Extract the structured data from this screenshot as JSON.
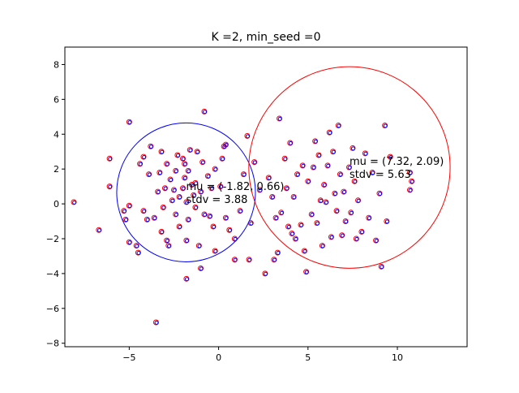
{
  "chart_data": {
    "type": "scatter",
    "title": "K =2, min_seed =0",
    "xlabel": "",
    "ylabel": "",
    "xlim": [
      -8.6,
      13.9
    ],
    "ylim": [
      -8.2,
      9.0
    ],
    "xticks": [
      -5,
      0,
      5,
      10
    ],
    "xtick_labels": [
      "−5",
      "0",
      "5",
      "10"
    ],
    "yticks": [
      -8,
      -6,
      -4,
      -2,
      0,
      2,
      4,
      6,
      8
    ],
    "ytick_labels": [
      "−8",
      "−6",
      "−4",
      "−2",
      "0",
      "2",
      "4",
      "6",
      "8"
    ],
    "grid": false,
    "point_colors": {
      "outer": "#ff0000",
      "inner": "#0000ff"
    },
    "points": [
      [
        -8.1,
        0.1
      ],
      [
        -6.7,
        -1.5
      ],
      [
        -6.1,
        2.6
      ],
      [
        -6.1,
        1.0
      ],
      [
        -5.3,
        -0.4
      ],
      [
        -5.2,
        -0.9
      ],
      [
        -5.0,
        -0.1
      ],
      [
        -5.0,
        -2.2
      ],
      [
        -5.0,
        4.7
      ],
      [
        -4.6,
        -2.4
      ],
      [
        -4.5,
        -2.8
      ],
      [
        -4.4,
        2.3
      ],
      [
        -4.2,
        -0.4
      ],
      [
        -4.0,
        -0.9
      ],
      [
        -4.2,
        2.7
      ],
      [
        -3.9,
        1.7
      ],
      [
        -3.8,
        3.3
      ],
      [
        -3.6,
        -0.8
      ],
      [
        -3.4,
        0.7
      ],
      [
        -3.5,
        -6.8
      ],
      [
        -3.3,
        1.8
      ],
      [
        -3.2,
        -1.6
      ],
      [
        -3.1,
        -0.2
      ],
      [
        -3.2,
        3.0
      ],
      [
        -3.0,
        0.9
      ],
      [
        -2.9,
        2.3
      ],
      [
        -2.9,
        -2.1
      ],
      [
        -2.8,
        -2.4
      ],
      [
        -2.7,
        1.4
      ],
      [
        -2.6,
        0.2
      ],
      [
        -2.5,
        0.8
      ],
      [
        -2.4,
        -0.6
      ],
      [
        -2.4,
        1.9
      ],
      [
        -2.3,
        2.8
      ],
      [
        -2.2,
        0.4
      ],
      [
        -2.2,
        -1.3
      ],
      [
        -2.0,
        2.6
      ],
      [
        -2.0,
        0.9
      ],
      [
        -1.9,
        2.3
      ],
      [
        -1.9,
        1.5
      ],
      [
        -1.8,
        0.1
      ],
      [
        -1.8,
        -2.1
      ],
      [
        -1.7,
        1.9
      ],
      [
        -1.7,
        -0.9
      ],
      [
        -1.6,
        3.1
      ],
      [
        -1.8,
        -4.3
      ],
      [
        -1.5,
        1.1
      ],
      [
        -1.4,
        0.5
      ],
      [
        -1.3,
        1.2
      ],
      [
        -1.3,
        -0.2
      ],
      [
        -1.2,
        3.0
      ],
      [
        -1.1,
        -2.4
      ],
      [
        -1.0,
        0.7
      ],
      [
        -1.0,
        -3.7
      ],
      [
        -0.9,
        2.4
      ],
      [
        -0.8,
        -0.6
      ],
      [
        -0.8,
        5.3
      ],
      [
        -0.6,
        1.6
      ],
      [
        -0.5,
        -0.7
      ],
      [
        -0.4,
        0.9
      ],
      [
        -0.3,
        -1.3
      ],
      [
        -0.2,
        2.0
      ],
      [
        -0.2,
        -2.7
      ],
      [
        0.1,
        1.0
      ],
      [
        0.2,
        2.6
      ],
      [
        0.3,
        3.3
      ],
      [
        0.4,
        3.4
      ],
      [
        0.4,
        -0.8
      ],
      [
        0.6,
        -1.5
      ],
      [
        0.9,
        -2.0
      ],
      [
        0.9,
        -3.2
      ],
      [
        1.2,
        -0.4
      ],
      [
        1.4,
        1.7
      ],
      [
        1.6,
        3.9
      ],
      [
        1.7,
        -3.2
      ],
      [
        1.8,
        -1.1
      ],
      [
        2.0,
        2.4
      ],
      [
        2.3,
        0.8
      ],
      [
        2.6,
        -4.0
      ],
      [
        2.8,
        1.5
      ],
      [
        3.0,
        0.4
      ],
      [
        3.1,
        -3.2
      ],
      [
        3.2,
        -0.8
      ],
      [
        3.3,
        -2.8
      ],
      [
        3.4,
        4.9
      ],
      [
        3.5,
        -0.5
      ],
      [
        3.7,
        2.6
      ],
      [
        3.8,
        0.9
      ],
      [
        3.9,
        -1.3
      ],
      [
        4.0,
        3.5
      ],
      [
        4.1,
        -1.7
      ],
      [
        4.2,
        0.4
      ],
      [
        4.3,
        -2.0
      ],
      [
        4.4,
        1.7
      ],
      [
        4.6,
        -1.2
      ],
      [
        4.7,
        2.2
      ],
      [
        4.8,
        -2.7
      ],
      [
        4.9,
        -3.9
      ],
      [
        5.0,
        1.3
      ],
      [
        5.2,
        -0.6
      ],
      [
        5.3,
        2.1
      ],
      [
        5.4,
        3.6
      ],
      [
        5.5,
        -1.1
      ],
      [
        5.6,
        2.8
      ],
      [
        5.7,
        0.2
      ],
      [
        5.8,
        -2.4
      ],
      [
        5.9,
        1.1
      ],
      [
        6.0,
        0.1
      ],
      [
        6.1,
        2.2
      ],
      [
        6.2,
        4.1
      ],
      [
        6.3,
        -1.9
      ],
      [
        6.4,
        3.0
      ],
      [
        6.5,
        0.6
      ],
      [
        6.6,
        -0.4
      ],
      [
        6.7,
        4.5
      ],
      [
        6.8,
        1.7
      ],
      [
        6.9,
        -1.8
      ],
      [
        7.0,
        0.7
      ],
      [
        7.1,
        -1.0
      ],
      [
        7.3,
        2.1
      ],
      [
        7.4,
        -0.5
      ],
      [
        7.5,
        3.2
      ],
      [
        7.6,
        1.3
      ],
      [
        7.7,
        -2.0
      ],
      [
        7.8,
        0.2
      ],
      [
        8.0,
        -1.6
      ],
      [
        8.2,
        2.9
      ],
      [
        8.4,
        -0.8
      ],
      [
        8.6,
        1.8
      ],
      [
        8.8,
        -2.1
      ],
      [
        9.0,
        0.6
      ],
      [
        9.1,
        -3.6
      ],
      [
        9.4,
        -1.0
      ],
      [
        9.3,
        4.5
      ],
      [
        9.6,
        2.7
      ],
      [
        10.7,
        1.8
      ],
      [
        10.7,
        0.8
      ],
      [
        10.8,
        1.3
      ]
    ],
    "clusters": [
      {
        "color": "#0000ff",
        "mu": [
          -1.82,
          0.66
        ],
        "stdv": 3.88,
        "label_mu": "mu = (-1.82, 0.66)",
        "label_stdv": "stdv = 3.88"
      },
      {
        "color": "#ff0000",
        "mu": [
          7.32,
          2.09
        ],
        "stdv": 5.63,
        "label_mu": "mu = (7.32, 2.09)",
        "label_stdv": "stdv = 5.63"
      }
    ]
  }
}
